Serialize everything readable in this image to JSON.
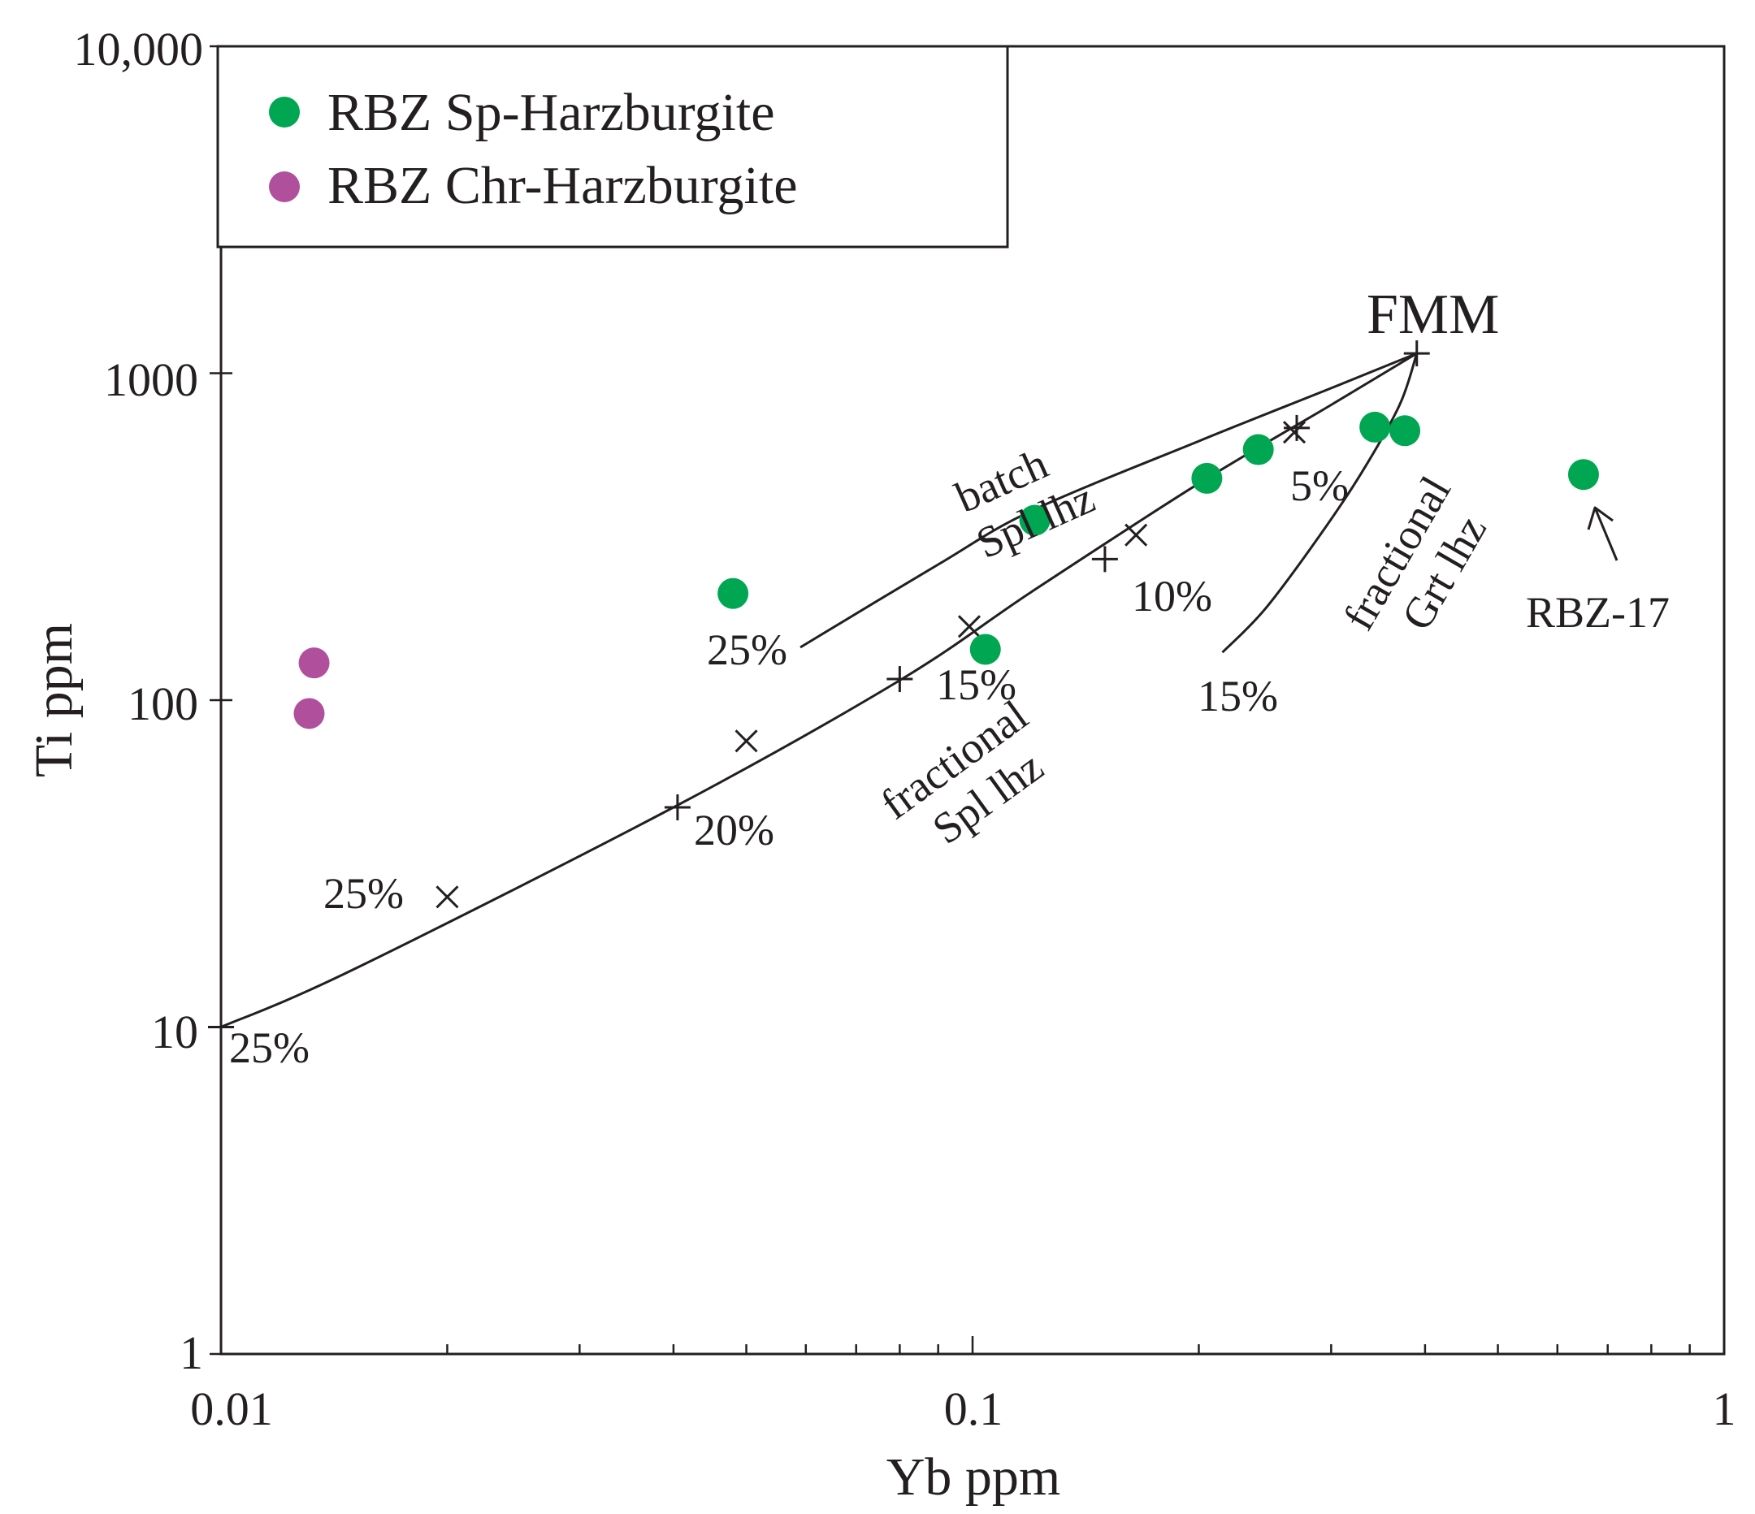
{
  "chart_data": {
    "type": "scatter",
    "xscale": "log",
    "yscale": "log",
    "xlabel": "Yb ppm",
    "ylabel": "Ti ppm",
    "xlim": [
      0.01,
      1
    ],
    "ylim": [
      1,
      10000
    ],
    "x_tick_labels": [
      {
        "value": 0.01,
        "label": "0.01"
      },
      {
        "value": 0.1,
        "label": "0.1"
      },
      {
        "value": 1,
        "label": "1"
      }
    ],
    "y_tick_labels": [
      {
        "value": 1,
        "label": "1"
      },
      {
        "value": 10,
        "label": "10"
      },
      {
        "value": 100,
        "label": "100"
      },
      {
        "value": 1000,
        "label": "1000"
      },
      {
        "value": 10000,
        "label": "10,000"
      }
    ],
    "legend": {
      "position": "top-left"
    },
    "series": [
      {
        "name": "RBZ Sp-Harzburgite",
        "color": "#00a651",
        "points": [
          {
            "x": 0.048,
            "y": 212
          },
          {
            "x": 0.104,
            "y": 143
          },
          {
            "x": 0.121,
            "y": 355
          },
          {
            "x": 0.205,
            "y": 477
          },
          {
            "x": 0.24,
            "y": 584
          },
          {
            "x": 0.343,
            "y": 684
          },
          {
            "x": 0.376,
            "y": 667
          },
          {
            "x": 0.65,
            "y": 490
          }
        ]
      },
      {
        "name": "RBZ Chr-Harzburgite",
        "color": "#b0509d",
        "points": [
          {
            "x": 0.0133,
            "y": 130
          },
          {
            "x": 0.0131,
            "y": 91
          }
        ]
      }
    ],
    "models": [
      {
        "name": "batch Spl lhz",
        "path": [
          {
            "x": 0.39,
            "y": 1150
          },
          {
            "x": 0.3,
            "y": 900
          },
          {
            "x": 0.2,
            "y": 620
          },
          {
            "x": 0.12,
            "y": 380
          },
          {
            "x": 0.09,
            "y": 260
          },
          {
            "x": 0.059,
            "y": 145
          }
        ],
        "ticks": [
          {
            "x": 0.268,
            "y": 660
          },
          {
            "x": 0.165,
            "y": 320
          },
          {
            "x": 0.099,
            "y": 168
          },
          {
            "x": 0.05,
            "y": 75
          },
          {
            "x": 0.02,
            "y": 25
          }
        ]
      },
      {
        "name": "fractional Spl lhz",
        "path": [
          {
            "x": 0.39,
            "y": 1150
          },
          {
            "x": 0.3,
            "y": 800
          },
          {
            "x": 0.2,
            "y": 460
          },
          {
            "x": 0.12,
            "y": 215
          },
          {
            "x": 0.08,
            "y": 115
          },
          {
            "x": 0.04,
            "y": 47
          },
          {
            "x": 0.015,
            "y": 15
          },
          {
            "x": 0.01,
            "y": 10
          }
        ],
        "ticks": [
          {
            "x": 0.27,
            "y": 680
          },
          {
            "x": 0.15,
            "y": 270
          },
          {
            "x": 0.08,
            "y": 116
          },
          {
            "x": 0.0405,
            "y": 47
          },
          {
            "x": 0.01,
            "y": 10
          }
        ]
      },
      {
        "name": "fractional Grt lhz",
        "path": [
          {
            "x": 0.39,
            "y": 1150
          },
          {
            "x": 0.37,
            "y": 800
          },
          {
            "x": 0.33,
            "y": 500
          },
          {
            "x": 0.29,
            "y": 320
          },
          {
            "x": 0.245,
            "y": 190
          },
          {
            "x": 0.215,
            "y": 140
          }
        ]
      }
    ],
    "labels": {
      "fmm": "FMM",
      "rbz17": "RBZ-17",
      "batch_line1": "batch",
      "batch_line2": "Spl lhz",
      "frac_spl_line1": "fractional",
      "frac_spl_line2": "Spl lhz",
      "frac_grt_line1": "fractional",
      "frac_grt_line2": "Grt lhz",
      "pct_batch_5": "5%",
      "pct_batch_10": "10%",
      "pct_batch_15": "15%",
      "pct_batch_25": "25%",
      "pct_frac_20": "20%",
      "pct_frac_25": "25%",
      "pct_frac_end_25": "25%",
      "pct_grt_15": "15%"
    }
  }
}
